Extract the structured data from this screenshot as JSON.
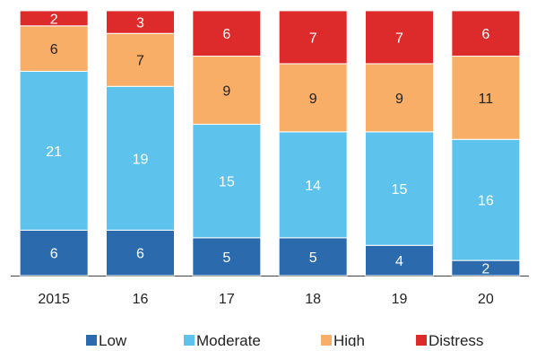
{
  "chart_data": {
    "type": "bar",
    "stacked": true,
    "categories": [
      "2015",
      "16",
      "17",
      "18",
      "19",
      "20"
    ],
    "series": [
      {
        "name": "Low",
        "color": "#2a6aad",
        "label_color": "#ffffff",
        "values": [
          6,
          6,
          5,
          5,
          4,
          2
        ]
      },
      {
        "name": "Moderate",
        "color": "#5ec3ec",
        "label_color": "#ffffff",
        "values": [
          21,
          19,
          15,
          14,
          15,
          16
        ]
      },
      {
        "name": "High",
        "color": "#f8ae66",
        "label_color": "#222222",
        "values": [
          6,
          7,
          9,
          9,
          9,
          11
        ]
      },
      {
        "name": "Distress",
        "color": "#dd2a2a",
        "label_color": "#ffffff",
        "values": [
          2,
          3,
          6,
          7,
          7,
          6
        ]
      }
    ],
    "ylim": [
      0,
      35
    ],
    "grid": false,
    "legend_position": "bottom"
  }
}
